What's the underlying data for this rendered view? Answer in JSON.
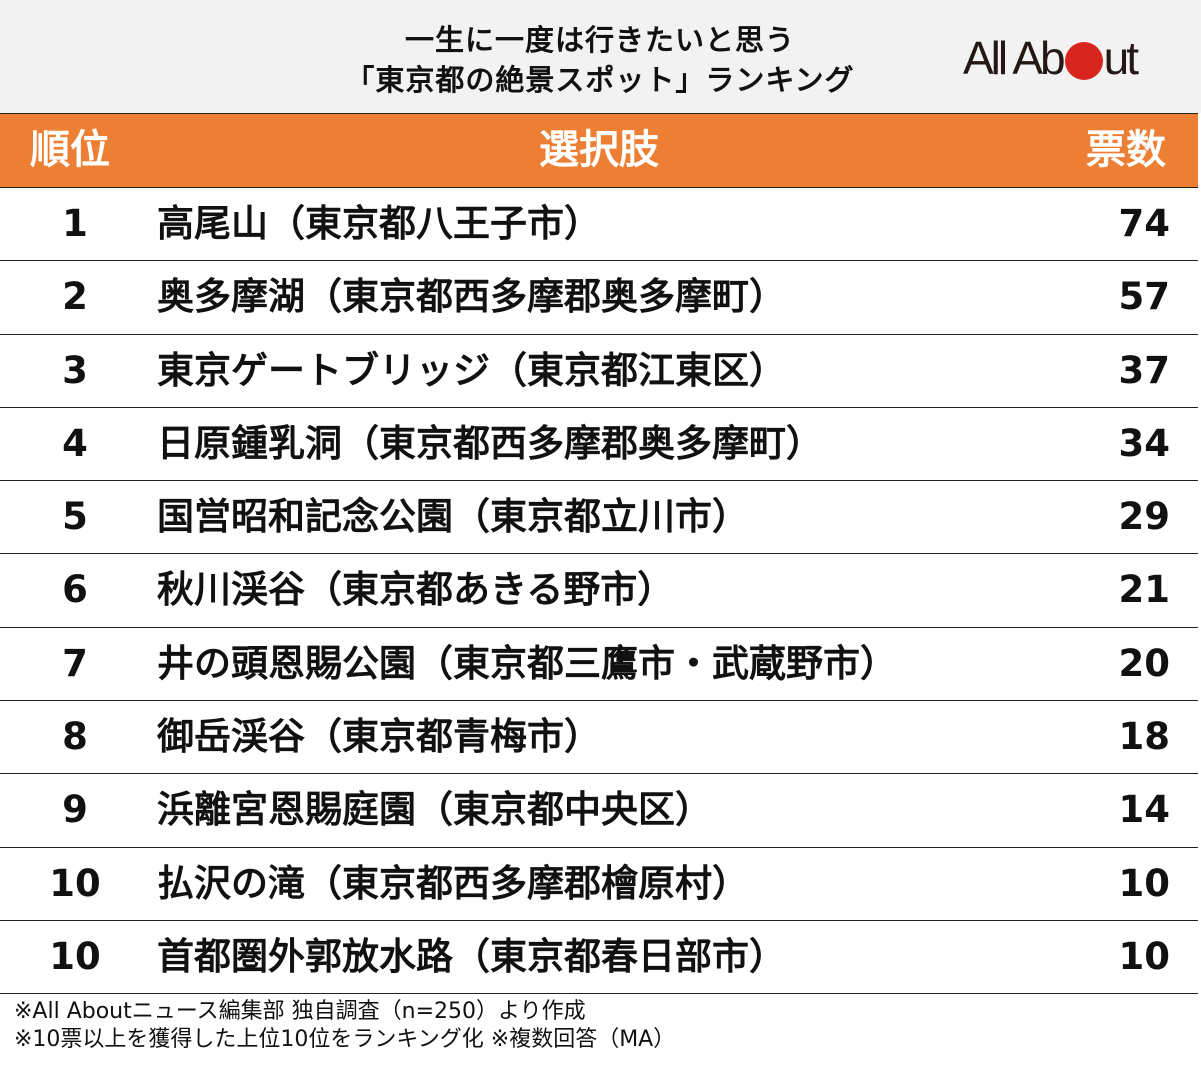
{
  "title": {
    "line1": "一生に一度は行きたいと思う",
    "line2": "「東京都の絶景スポット」ランキング"
  },
  "logo": {
    "text_before": "All Ab",
    "text_after": "ut",
    "dot_color": "#d7251e",
    "label": "All About"
  },
  "header": {
    "rank": "順位",
    "choice": "選択肢",
    "votes": "票数",
    "background": "#ec7f34"
  },
  "rows": [
    {
      "rank": "1",
      "name": "高尾山（東京都八王子市）",
      "votes": "74"
    },
    {
      "rank": "2",
      "name": "奥多摩湖（東京都西多摩郡奥多摩町）",
      "votes": "57"
    },
    {
      "rank": "3",
      "name": "東京ゲートブリッジ（東京都江東区）",
      "votes": "37"
    },
    {
      "rank": "4",
      "name": "日原鍾乳洞（東京都西多摩郡奥多摩町）",
      "votes": "34"
    },
    {
      "rank": "5",
      "name": "国営昭和記念公園（東京都立川市）",
      "votes": "29"
    },
    {
      "rank": "6",
      "name": "秋川渓谷（東京都あきる野市）",
      "votes": "21"
    },
    {
      "rank": "7",
      "name": "井の頭恩賜公園（東京都三鷹市・武蔵野市）",
      "votes": "20"
    },
    {
      "rank": "8",
      "name": "御岳渓谷（東京都青梅市）",
      "votes": "18"
    },
    {
      "rank": "9",
      "name": "浜離宮恩賜庭園（東京都中央区）",
      "votes": "14"
    },
    {
      "rank": "10",
      "name": "払沢の滝（東京都西多摩郡檜原村）",
      "votes": "10"
    },
    {
      "rank": "10",
      "name": "首都圏外郭放水路（東京都春日部市）",
      "votes": "10"
    }
  ],
  "footer": {
    "note1": "※All Aboutニュース編集部 独自調査（n=250）より作成",
    "note2": "※10票以上を獲得した上位10位をランキング化 ※複数回答（MA）"
  },
  "chart_data": {
    "type": "table",
    "title": "一生に一度は行きたいと思う「東京都の絶景スポット」ランキング",
    "columns": [
      "順位",
      "選択肢",
      "票数"
    ],
    "categories": [
      "高尾山（東京都八王子市）",
      "奥多摩湖（東京都西多摩郡奥多摩町）",
      "東京ゲートブリッジ（東京都江東区）",
      "日原鍾乳洞（東京都西多摩郡奥多摩町）",
      "国営昭和記念公園（東京都立川市）",
      "秋川渓谷（東京都あきる野市）",
      "井の頭恩賜公園（東京都三鷹市・武蔵野市）",
      "御岳渓谷（東京都青梅市）",
      "浜離宮恩賜庭園（東京都中央区）",
      "払沢の滝（東京都西多摩郡檜原村）",
      "首都圏外郭放水路（東京都春日部市）"
    ],
    "ranks": [
      1,
      2,
      3,
      4,
      5,
      6,
      7,
      8,
      9,
      10,
      10
    ],
    "values": [
      74,
      57,
      37,
      34,
      29,
      21,
      20,
      18,
      14,
      10,
      10
    ],
    "notes": [
      "※All Aboutニュース編集部 独自調査（n=250）より作成",
      "※10票以上を獲得した上位10位をランキング化 ※複数回答（MA）"
    ]
  }
}
